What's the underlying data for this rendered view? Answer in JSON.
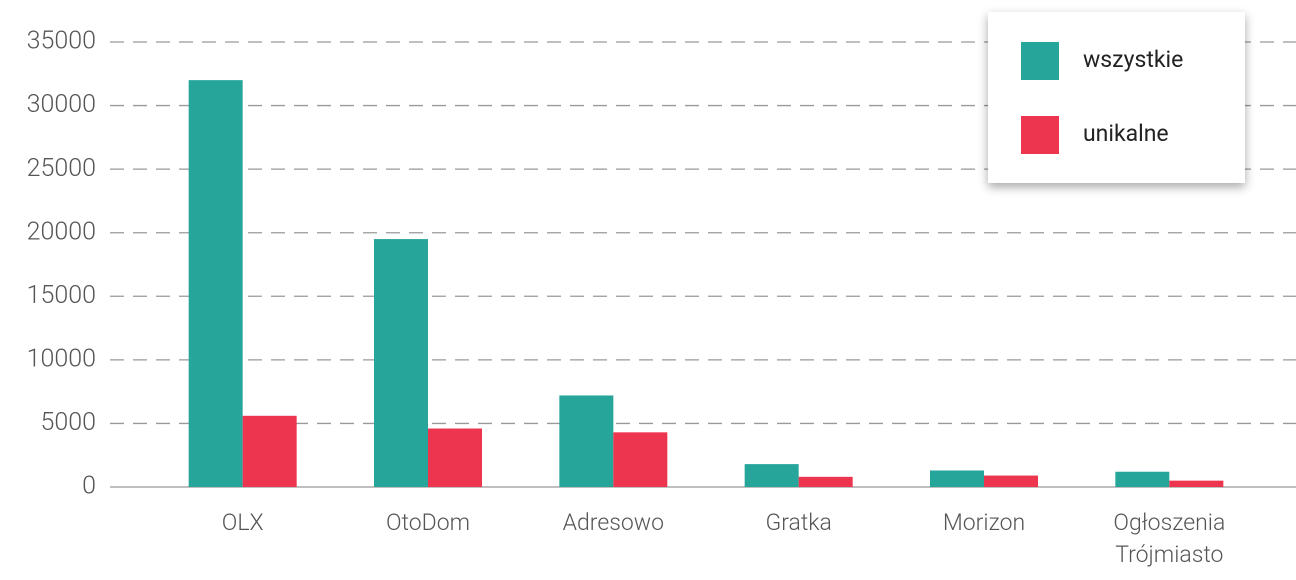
{
  "chart_data": {
    "type": "bar",
    "categories": [
      "OLX",
      "OtoDom",
      "Adresowo",
      "Gratka",
      "Morizon",
      "Ogłoszenia Trójmiasto"
    ],
    "series": [
      {
        "name": "wszystkie",
        "color": "#26a69a",
        "values": [
          32000,
          19500,
          7200,
          1800,
          1300,
          1200
        ]
      },
      {
        "name": "unikalne",
        "color": "#ee3550",
        "values": [
          5600,
          4600,
          4300,
          800,
          900,
          500
        ]
      }
    ],
    "ylim": [
      0,
      35000
    ],
    "yticks": [
      0,
      5000,
      10000,
      15000,
      20000,
      25000,
      30000,
      35000
    ],
    "grid": true,
    "legend": "upper right"
  }
}
